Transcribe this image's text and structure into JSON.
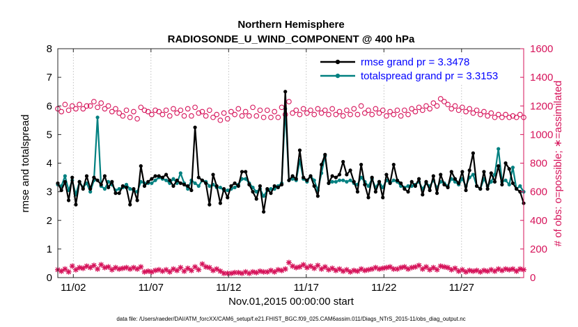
{
  "chart_data": {
    "type": "line",
    "title": "Northern Hemisphere",
    "subtitle": "RADIOSONDE_U_WIND_COMPONENT @ 400 hPa",
    "xlabel": "Nov.01,2015 00:00:00 start",
    "ylabel": "rmse and totalspread",
    "y2label": "# of obs: o=possible; ∗=assimilated",
    "xlim": [
      0,
      30
    ],
    "ylim": [
      0,
      8
    ],
    "y2lim": [
      0,
      1600
    ],
    "xtick_values": [
      1,
      6,
      11,
      16,
      21,
      26
    ],
    "xtick_labels": [
      "11/02",
      "11/07",
      "11/12",
      "11/17",
      "11/22",
      "11/27"
    ],
    "ytick_labels": [
      "0",
      "1",
      "2",
      "3",
      "4",
      "5",
      "6",
      "7",
      "8"
    ],
    "y2tick_labels": [
      "0",
      "200",
      "400",
      "600",
      "800",
      "1000",
      "1200",
      "1400",
      "1600"
    ],
    "legend": {
      "placement": "top-right",
      "rmse_label": "rmse grand pr = 3.3478",
      "spread_label": "totalspread grand pr = 3.3153"
    },
    "footnote": "data file: /Users/raeder/DAI/ATM_forcXX/CAM6_setup/f.e21.FHIST_BGC.f09_025.CAM6assim.011/Diags_NTrS_2015-11/obs_diag_output.nc",
    "colors": {
      "rmse": "#000000",
      "spread": "#008080",
      "obs": "#d6135a"
    },
    "series": [
      {
        "name": "rmse",
        "values": [
          3.3,
          3.05,
          3.35,
          2.7,
          3.5,
          2.55,
          3.35,
          3.1,
          3.55,
          3.1,
          3.5,
          3.4,
          3.25,
          3.55,
          3.15,
          3.35,
          2.95,
          2.95,
          3.2,
          3.15,
          2.55,
          3.1,
          2.7,
          3.9,
          3.2,
          3.35,
          3.45,
          3.55,
          3.55,
          3.5,
          3.6,
          3.4,
          3.2,
          3.4,
          3.3,
          3.25,
          3.2,
          3.05,
          5.25,
          3.5,
          3.4,
          3.3,
          2.55,
          3.6,
          3.2,
          2.6,
          3.1,
          2.8,
          3.2,
          3.3,
          3.2,
          3.7,
          3.7,
          3.25,
          3.0,
          2.75,
          3.2,
          2.3,
          3.1,
          2.95,
          3.2,
          3.15,
          3.25,
          6.5,
          3.4,
          3.55,
          3.45,
          4.45,
          3.5,
          3.4,
          3.55,
          3.2,
          2.85,
          3.95,
          4.3,
          3.3,
          3.55,
          3.5,
          3.6,
          4.05,
          3.6,
          3.75,
          3.35,
          3.0,
          3.95,
          3.25,
          2.8,
          3.5,
          3.0,
          3.35,
          2.8,
          3.6,
          3.3,
          3.95,
          3.4,
          3.3,
          3.1,
          3.0,
          3.35,
          3.2,
          3.45,
          2.9,
          3.35,
          3.05,
          3.55,
          2.95,
          3.6,
          3.25,
          3.15,
          3.7,
          3.45,
          3.3,
          3.7,
          3.05,
          3.75,
          4.35,
          3.2,
          3.1,
          3.7,
          3.1,
          3.65,
          3.35,
          3.9,
          3.25,
          4.0,
          3.8,
          3.3,
          3.1,
          3.0,
          2.6
        ]
      },
      {
        "name": "totalspread",
        "values": [
          3.25,
          3.2,
          3.55,
          3.05,
          3.4,
          2.9,
          3.35,
          3.15,
          3.3,
          3.0,
          3.4,
          5.6,
          3.2,
          3.1,
          3.35,
          3.25,
          3.05,
          3.1,
          3.15,
          3.25,
          3.1,
          3.05,
          3.0,
          3.35,
          3.3,
          3.3,
          3.3,
          3.4,
          3.5,
          3.45,
          3.4,
          3.3,
          3.45,
          3.3,
          3.65,
          3.3,
          3.1,
          3.4,
          3.3,
          3.2,
          3.4,
          3.35,
          3.2,
          3.25,
          3.15,
          3.15,
          3.05,
          3.05,
          3.1,
          3.15,
          3.25,
          3.45,
          3.45,
          3.3,
          3.15,
          3.0,
          3.1,
          2.85,
          3.05,
          3.1,
          3.1,
          3.2,
          3.3,
          5.9,
          3.4,
          3.45,
          3.4,
          4.1,
          3.45,
          3.35,
          3.55,
          3.4,
          3.05,
          3.65,
          4.25,
          3.3,
          3.35,
          3.35,
          3.4,
          3.4,
          3.35,
          3.4,
          3.3,
          3.25,
          3.5,
          3.35,
          3.2,
          3.45,
          3.15,
          3.35,
          3.15,
          3.4,
          3.3,
          3.4,
          3.35,
          3.2,
          3.15,
          3.2,
          3.2,
          3.25,
          3.35,
          3.1,
          3.3,
          3.2,
          3.4,
          3.15,
          3.35,
          3.3,
          3.2,
          3.45,
          3.35,
          3.25,
          3.45,
          3.2,
          3.5,
          3.6,
          3.2,
          3.1,
          3.45,
          3.2,
          3.35,
          3.6,
          4.5,
          3.35,
          3.4,
          3.25,
          3.85,
          3.1,
          3.2,
          3.0
        ]
      },
      {
        "name": "obs possible",
        "values": [
          1180,
          1160,
          1210,
          1170,
          1200,
          1180,
          1210,
          1180,
          1200,
          1200,
          1230,
          1190,
          1220,
          1180,
          1200,
          1160,
          1180,
          1150,
          1130,
          1170,
          1120,
          1160,
          1110,
          1190,
          1170,
          1160,
          1140,
          1170,
          1160,
          1140,
          1170,
          1130,
          1180,
          1150,
          1170,
          1130,
          1180,
          1130,
          1190,
          1150,
          1160,
          1130,
          1170,
          1120,
          1140,
          1100,
          1150,
          1110,
          1160,
          1140,
          1180,
          1130,
          1160,
          1130,
          1190,
          1130,
          1170,
          1120,
          1170,
          1120,
          1160,
          1120,
          1190,
          1140,
          1230,
          1150,
          1170,
          1140,
          1180,
          1150,
          1170,
          1140,
          1180,
          1150,
          1170,
          1140,
          1180,
          1140,
          1160,
          1130,
          1170,
          1140,
          1180,
          1140,
          1200,
          1150,
          1170,
          1140,
          1180,
          1150,
          1170,
          1130,
          1160,
          1140,
          1170,
          1130,
          1170,
          1140,
          1180,
          1160,
          1190,
          1170,
          1200,
          1180,
          1220,
          1200,
          1250,
          1230,
          1210,
          1180,
          1200,
          1170,
          1190,
          1160,
          1180,
          1150,
          1170,
          1140,
          1160,
          1130,
          1150,
          1120,
          1140,
          1120,
          1140,
          1120,
          1130,
          1120,
          1140,
          1120
        ]
      },
      {
        "name": "obs assimilated",
        "values": [
          55,
          45,
          60,
          40,
          80,
          55,
          70,
          65,
          80,
          70,
          85,
          60,
          90,
          70,
          75,
          55,
          70,
          60,
          65,
          70,
          60,
          70,
          60,
          75,
          40,
          45,
          40,
          50,
          55,
          45,
          55,
          40,
          60,
          50,
          70,
          45,
          65,
          50,
          75,
          55,
          95,
          75,
          70,
          50,
          60,
          45,
          30,
          30,
          30,
          35,
          35,
          30,
          40,
          30,
          40,
          35,
          45,
          40,
          40,
          50,
          40,
          55,
          50,
          60,
          105,
          80,
          70,
          75,
          90,
          70,
          80,
          65,
          85,
          60,
          75,
          55,
          65,
          50,
          60,
          45,
          55,
          40,
          50,
          45,
          60,
          50,
          55,
          60,
          70,
          60,
          65,
          70,
          75,
          60,
          60,
          70,
          75,
          60,
          70,
          75,
          85,
          60,
          75,
          55,
          70,
          55,
          80,
          75,
          70,
          55,
          65,
          45,
          55,
          40,
          50,
          45,
          50,
          40,
          50,
          45,
          55,
          45,
          60,
          50,
          60,
          55,
          60,
          45,
          60,
          55
        ]
      }
    ]
  }
}
